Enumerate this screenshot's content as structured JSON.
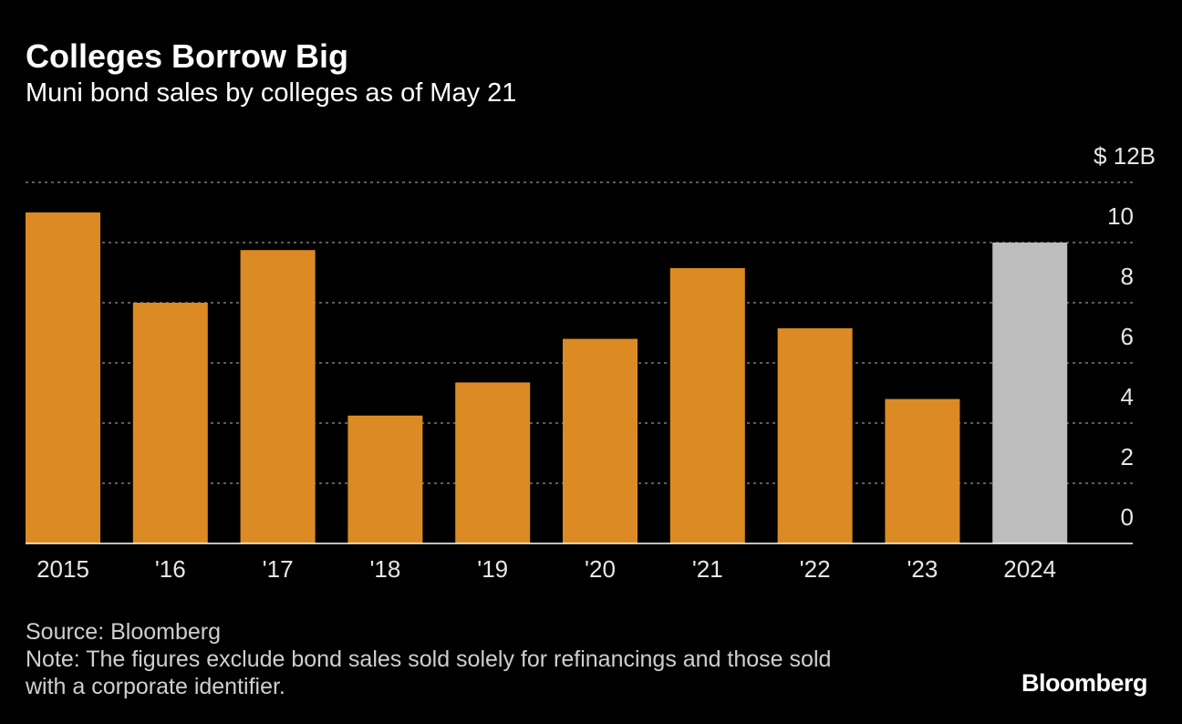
{
  "header": {
    "title": "Colleges Borrow Big",
    "subtitle": "Muni bond sales by colleges as of May 21"
  },
  "footer": {
    "source": "Source: Bloomberg",
    "note_line1": "Note: The figures exclude bond sales sold solely for refinancings and those sold",
    "note_line2": "with a corporate identifier."
  },
  "brand": "Bloomberg",
  "colors": {
    "bar": "#DC8A23",
    "highlight_bar": "#BDBDBD",
    "background": "#000000",
    "grid": "#7a7a7a",
    "text": "#ffffff"
  },
  "chart_data": {
    "type": "bar",
    "title": "Colleges Borrow Big",
    "subtitle": "Muni bond sales by colleges as of May 21",
    "categories": [
      "2015",
      "'16",
      "'17",
      "'18",
      "'19",
      "'20",
      "'21",
      "'22",
      "'23",
      "2024"
    ],
    "values": [
      11.0,
      8.0,
      9.75,
      4.25,
      5.35,
      6.8,
      9.15,
      7.15,
      4.8,
      10.0
    ],
    "highlight_index": 9,
    "ylim": [
      0,
      12
    ],
    "yticks": [
      0,
      2,
      4,
      6,
      8,
      10,
      12
    ],
    "ytick_labels": [
      "0",
      "2",
      "4",
      "6",
      "8",
      "10",
      "$ 12B"
    ],
    "yaxis_side": "right",
    "grid": "horizontal dotted",
    "xlabel": "",
    "ylabel": ""
  }
}
